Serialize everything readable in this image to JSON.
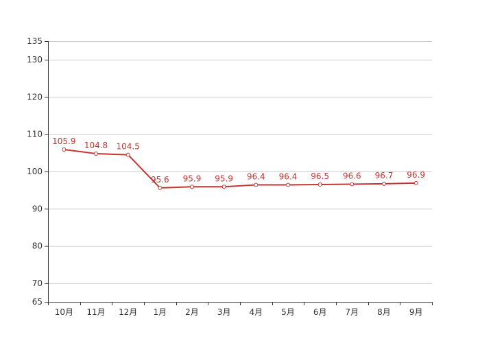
{
  "chart_data": {
    "type": "line",
    "categories": [
      "10月",
      "11月",
      "12月",
      "1月",
      "2月",
      "3月",
      "4月",
      "5月",
      "6月",
      "7月",
      "8月",
      "9月"
    ],
    "series": [
      {
        "values": [
          105.9,
          104.8,
          104.5,
          95.6,
          95.9,
          95.9,
          96.4,
          96.4,
          96.5,
          96.6,
          96.7,
          96.9
        ],
        "color": "#c23531"
      }
    ],
    "ylim": [
      65,
      135
    ],
    "yticks": [
      65,
      70,
      80,
      90,
      100,
      110,
      120,
      130,
      135
    ],
    "grid": true,
    "data_labels": true,
    "colors": {
      "grid": "#cccccc",
      "axis": "#333333",
      "line": "#c23531",
      "label": "#c23531"
    }
  }
}
